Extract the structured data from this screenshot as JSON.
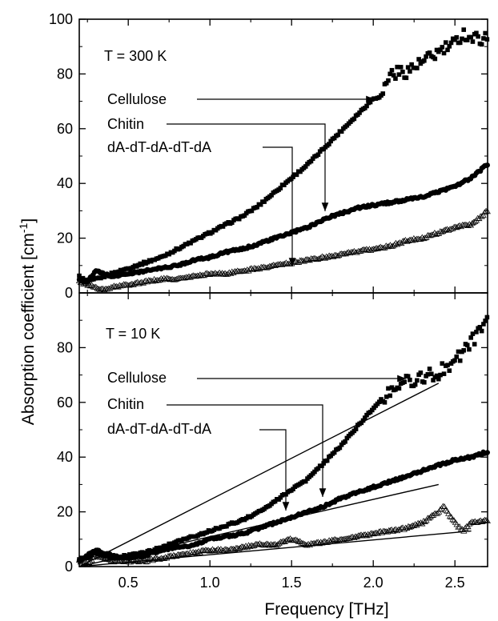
{
  "chart_data": {
    "type": "scatter",
    "xlabel": "Frequency [THz]",
    "ylabel_main": "Absorption coefficient [cm",
    "ylabel_sup": "-1",
    "ylabel_close": "]",
    "xlim": [
      0.2,
      2.7
    ],
    "x_ticks": [
      "0.5",
      "1.0",
      "1.5",
      "2.0",
      "2.5"
    ],
    "x_tick_values": [
      0.5,
      1.0,
      1.5,
      2.0,
      2.5
    ],
    "panels": [
      {
        "id": "top",
        "title": "T = 300 K",
        "ylim": [
          0,
          100
        ],
        "y_ticks": [
          "0",
          "20",
          "40",
          "60",
          "80",
          "100"
        ],
        "y_tick_values": [
          0,
          20,
          40,
          60,
          80,
          100
        ],
        "series": [
          {
            "name": "Cellulose",
            "marker": "square",
            "points": [
              [
                0.2,
                6
              ],
              [
                0.25,
                4
              ],
              [
                0.3,
                5
              ],
              [
                0.35,
                6
              ],
              [
                0.4,
                7
              ],
              [
                0.5,
                9
              ],
              [
                0.6,
                11
              ],
              [
                0.7,
                13
              ],
              [
                0.8,
                16
              ],
              [
                0.9,
                19
              ],
              [
                1.0,
                22
              ],
              [
                1.1,
                25
              ],
              [
                1.2,
                28
              ],
              [
                1.3,
                32
              ],
              [
                1.4,
                37
              ],
              [
                1.5,
                42
              ],
              [
                1.6,
                47
              ],
              [
                1.7,
                53
              ],
              [
                1.8,
                59
              ],
              [
                1.9,
                65
              ],
              [
                2.0,
                71
              ],
              [
                2.05,
                72
              ],
              [
                2.1,
                80
              ],
              [
                2.2,
                81
              ],
              [
                2.3,
                84
              ],
              [
                2.4,
                88
              ],
              [
                2.5,
                91
              ],
              [
                2.55,
                95
              ],
              [
                2.6,
                93
              ],
              [
                2.7,
                93
              ]
            ]
          },
          {
            "name": "Chitin",
            "marker": "circle",
            "points": [
              [
                0.2,
                5
              ],
              [
                0.25,
                4
              ],
              [
                0.3,
                8
              ],
              [
                0.35,
                7
              ],
              [
                0.4,
                6
              ],
              [
                0.5,
                7
              ],
              [
                0.6,
                8
              ],
              [
                0.7,
                9
              ],
              [
                0.8,
                10
              ],
              [
                0.9,
                12
              ],
              [
                1.0,
                13
              ],
              [
                1.1,
                15
              ],
              [
                1.2,
                16
              ],
              [
                1.3,
                18
              ],
              [
                1.4,
                20
              ],
              [
                1.5,
                22
              ],
              [
                1.6,
                24
              ],
              [
                1.7,
                27
              ],
              [
                1.8,
                29
              ],
              [
                1.9,
                31
              ],
              [
                2.0,
                32
              ],
              [
                2.1,
                33
              ],
              [
                2.2,
                34
              ],
              [
                2.3,
                35
              ],
              [
                2.4,
                37
              ],
              [
                2.5,
                39
              ],
              [
                2.6,
                42
              ],
              [
                2.7,
                47
              ]
            ]
          },
          {
            "name": "dA-dT-dA-dT-dA",
            "marker": "triangle",
            "points": [
              [
                0.2,
                4
              ],
              [
                0.25,
                3
              ],
              [
                0.3,
                2
              ],
              [
                0.35,
                1
              ],
              [
                0.4,
                2
              ],
              [
                0.5,
                3
              ],
              [
                0.6,
                4
              ],
              [
                0.7,
                5
              ],
              [
                0.8,
                5
              ],
              [
                0.9,
                6
              ],
              [
                1.0,
                7
              ],
              [
                1.1,
                7
              ],
              [
                1.2,
                8
              ],
              [
                1.3,
                9
              ],
              [
                1.4,
                10
              ],
              [
                1.5,
                11
              ],
              [
                1.6,
                12
              ],
              [
                1.7,
                13
              ],
              [
                1.8,
                14
              ],
              [
                1.9,
                15
              ],
              [
                2.0,
                16
              ],
              [
                2.1,
                17
              ],
              [
                2.2,
                19
              ],
              [
                2.3,
                20
              ],
              [
                2.4,
                22
              ],
              [
                2.5,
                24
              ],
              [
                2.6,
                25
              ],
              [
                2.7,
                30
              ]
            ]
          }
        ],
        "annotations": [
          {
            "text": "Cellulose",
            "series": "Cellulose"
          },
          {
            "text": "Chitin",
            "series": "Chitin"
          },
          {
            "text": "dA-dT-dA-dT-dA",
            "series": "dA-dT-dA-dT-dA"
          }
        ]
      },
      {
        "id": "bottom",
        "title": "T = 10 K",
        "ylim": [
          0,
          100
        ],
        "y_ticks": [
          "0",
          "20",
          "40",
          "60",
          "80"
        ],
        "y_tick_values": [
          0,
          20,
          40,
          60,
          80
        ],
        "series": [
          {
            "name": "Cellulose",
            "marker": "square",
            "points": [
              [
                0.2,
                3
              ],
              [
                0.25,
                3
              ],
              [
                0.3,
                5
              ],
              [
                0.35,
                4
              ],
              [
                0.4,
                3
              ],
              [
                0.5,
                4
              ],
              [
                0.6,
                5
              ],
              [
                0.7,
                7
              ],
              [
                0.8,
                9
              ],
              [
                0.9,
                11
              ],
              [
                1.0,
                13
              ],
              [
                1.1,
                15
              ],
              [
                1.2,
                17
              ],
              [
                1.3,
                20
              ],
              [
                1.4,
                24
              ],
              [
                1.5,
                28
              ],
              [
                1.6,
                32
              ],
              [
                1.7,
                38
              ],
              [
                1.8,
                44
              ],
              [
                1.9,
                51
              ],
              [
                2.0,
                58
              ],
              [
                2.1,
                64
              ],
              [
                2.2,
                68
              ],
              [
                2.3,
                69
              ],
              [
                2.4,
                71
              ],
              [
                2.5,
                75
              ],
              [
                2.6,
                82
              ],
              [
                2.7,
                89
              ]
            ]
          },
          {
            "name": "Chitin",
            "marker": "circle",
            "points": [
              [
                0.2,
                2
              ],
              [
                0.25,
                4
              ],
              [
                0.3,
                6
              ],
              [
                0.35,
                5
              ],
              [
                0.4,
                4
              ],
              [
                0.5,
                3
              ],
              [
                0.6,
                4
              ],
              [
                0.7,
                6
              ],
              [
                0.8,
                7
              ],
              [
                0.9,
                8
              ],
              [
                1.0,
                10
              ],
              [
                1.1,
                11
              ],
              [
                1.2,
                12
              ],
              [
                1.3,
                14
              ],
              [
                1.4,
                16
              ],
              [
                1.5,
                18
              ],
              [
                1.6,
                20
              ],
              [
                1.7,
                22
              ],
              [
                1.8,
                25
              ],
              [
                1.9,
                27
              ],
              [
                2.0,
                29
              ],
              [
                2.1,
                31
              ],
              [
                2.2,
                33
              ],
              [
                2.3,
                35
              ],
              [
                2.4,
                37
              ],
              [
                2.5,
                39
              ],
              [
                2.6,
                40
              ],
              [
                2.7,
                42
              ]
            ]
          },
          {
            "name": "dA-dT-dA-dT-dA",
            "marker": "triangle",
            "points": [
              [
                0.2,
                2
              ],
              [
                0.25,
                1
              ],
              [
                0.3,
                4
              ],
              [
                0.35,
                3
              ],
              [
                0.4,
                2
              ],
              [
                0.5,
                2
              ],
              [
                0.6,
                2
              ],
              [
                0.7,
                3
              ],
              [
                0.8,
                4
              ],
              [
                0.9,
                5
              ],
              [
                1.0,
                6
              ],
              [
                1.1,
                6
              ],
              [
                1.2,
                7
              ],
              [
                1.3,
                8
              ],
              [
                1.4,
                8
              ],
              [
                1.5,
                10
              ],
              [
                1.6,
                8
              ],
              [
                1.7,
                9
              ],
              [
                1.8,
                10
              ],
              [
                1.9,
                11
              ],
              [
                2.0,
                12
              ],
              [
                2.1,
                13
              ],
              [
                2.2,
                14
              ],
              [
                2.3,
                16
              ],
              [
                2.4,
                20
              ],
              [
                2.43,
                22
              ],
              [
                2.5,
                16
              ],
              [
                2.55,
                13
              ],
              [
                2.6,
                16
              ],
              [
                2.7,
                17
              ]
            ]
          }
        ],
        "baselines": [
          {
            "series": "Cellulose",
            "from": [
              0.2,
              0
            ],
            "to": [
              2.4,
              67
            ]
          },
          {
            "series": "Chitin",
            "from": [
              0.2,
              0
            ],
            "to": [
              2.4,
              30
            ]
          },
          {
            "series": "dA-dT-dA-dT-dA",
            "from": [
              0.2,
              0
            ],
            "to": [
              2.6,
              13
            ]
          }
        ],
        "annotations": [
          {
            "text": "Cellulose",
            "series": "Cellulose"
          },
          {
            "text": "Chitin",
            "series": "Chitin"
          },
          {
            "text": "dA-dT-dA-dT-dA",
            "series": "dA-dT-dA-dT-dA"
          }
        ]
      }
    ]
  }
}
